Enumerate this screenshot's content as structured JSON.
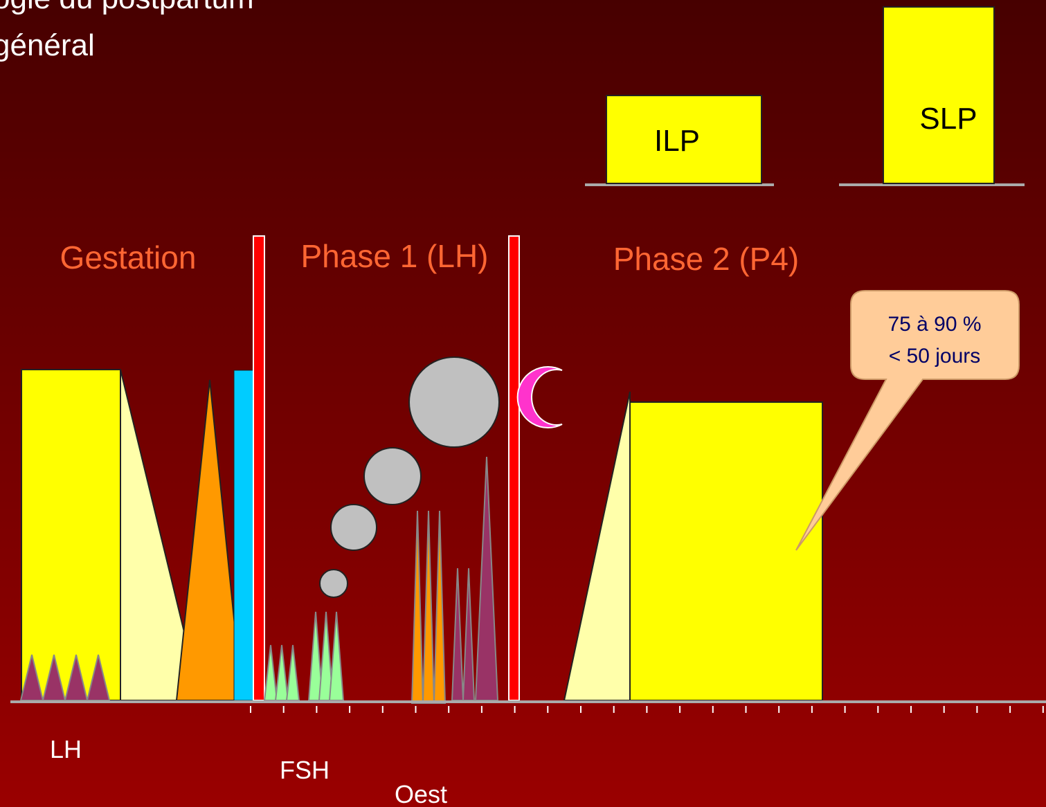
{
  "header": {
    "title_lines": [
      "ogie du postpartum",
      "général"
    ]
  },
  "boxes": {
    "ilp": "ILP",
    "slp": "SLP"
  },
  "phases": {
    "gestation": "Gestation",
    "phase1": "Phase 1 (LH)",
    "phase2": "Phase 2 (P4)"
  },
  "callout": {
    "lines": [
      "75 à 90 %",
      "< 50 jours"
    ]
  },
  "hormones": {
    "lh": "LH",
    "fsh": "FSH",
    "oest": "Oest"
  }
}
